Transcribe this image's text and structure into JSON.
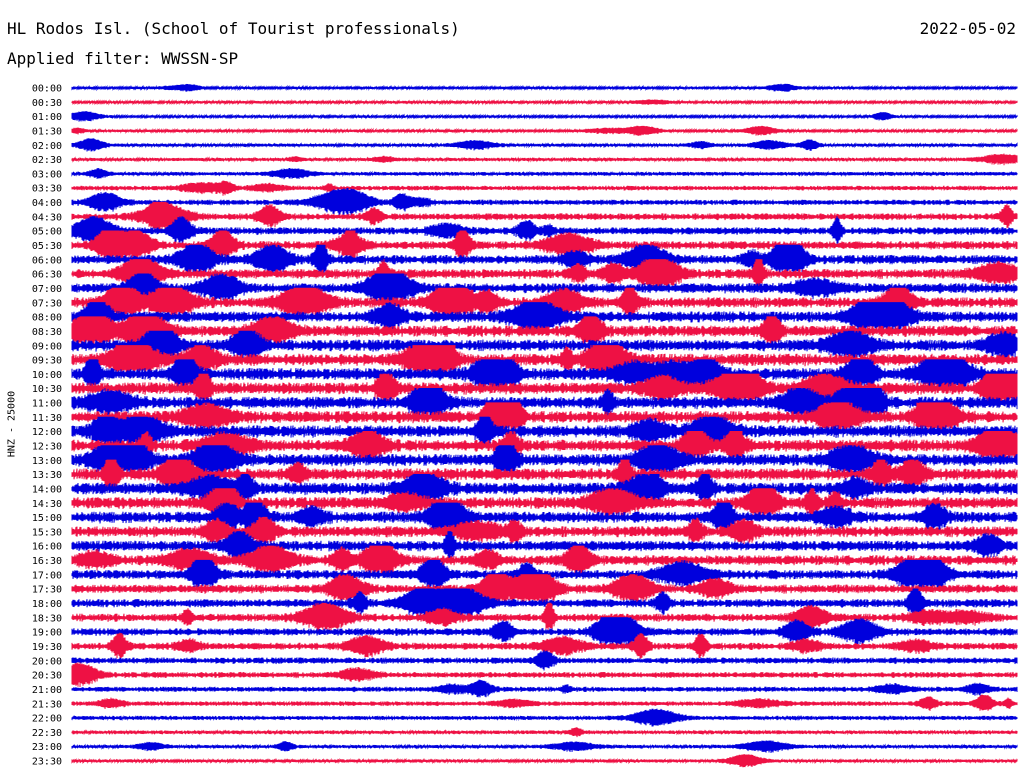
{
  "header": {
    "station": "HL Rodos Isl. (School of Tourist professionals)",
    "filter": "Applied filter: WWSSN-SP",
    "date": "2022-05-02"
  },
  "chart_data": {
    "type": "line",
    "title": "HL Rodos Isl. (School of Tourist professionals)",
    "ylabel": "HNZ - 25000",
    "row_labels": [
      "00:00",
      "00:30",
      "01:00",
      "01:30",
      "02:00",
      "02:30",
      "03:00",
      "03:30",
      "04:00",
      "04:30",
      "05:00",
      "05:30",
      "06:00",
      "06:30",
      "07:00",
      "07:30",
      "08:00",
      "08:30",
      "09:00",
      "09:30",
      "10:00",
      "10:30",
      "11:00",
      "11:30",
      "12:00",
      "12:30",
      "13:00",
      "13:30",
      "14:00",
      "14:30",
      "15:00",
      "15:30",
      "16:00",
      "16:30",
      "17:00",
      "17:30",
      "18:00",
      "18:30",
      "19:00",
      "19:30",
      "20:00",
      "20:30",
      "21:00",
      "21:30",
      "22:00",
      "22:30",
      "23:00",
      "23:30"
    ],
    "series_colors": [
      "#0000dd",
      "#ee1144"
    ],
    "noise_levels": [
      1.2,
      1.3,
      1.2,
      1.3,
      1.5,
      1.6,
      1.8,
      2.2,
      2.6,
      3.2,
      3.6,
      4.0,
      4.4,
      4.6,
      4.8,
      5.0,
      5.2,
      5.4,
      5.6,
      5.8,
      5.8,
      5.8,
      5.8,
      5.8,
      5.8,
      5.8,
      5.8,
      5.8,
      5.8,
      5.6,
      5.4,
      5.2,
      5.0,
      4.8,
      4.4,
      4.2,
      4.0,
      3.8,
      3.6,
      3.4,
      3.0,
      2.8,
      2.4,
      2.2,
      2.0,
      1.8,
      1.6,
      1.5
    ]
  }
}
